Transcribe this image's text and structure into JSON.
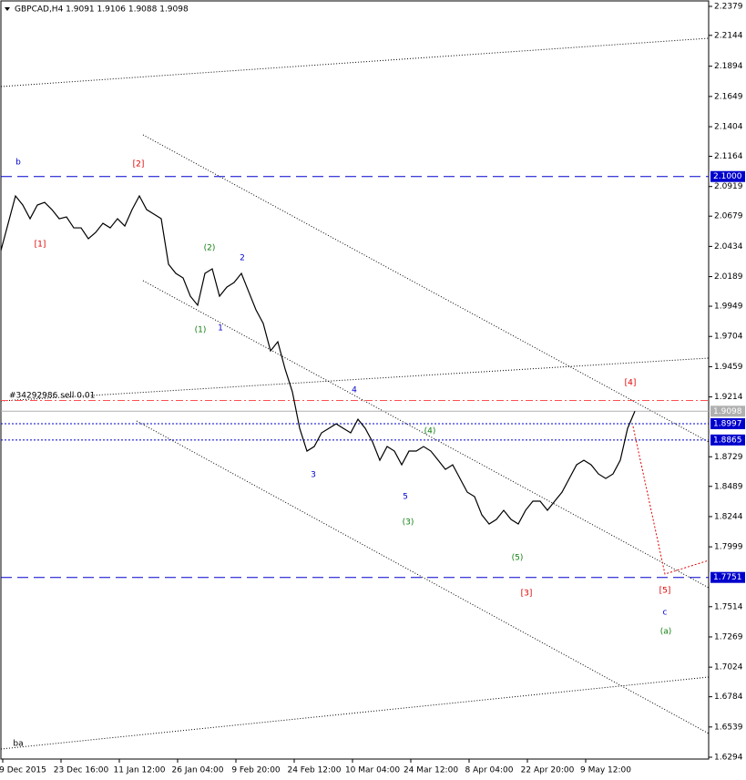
{
  "chart_data": {
    "type": "line",
    "title": "GBPCAD,H4  1.9091 1.9106 1.9088 1.9098",
    "color": "#000000",
    "categories": [
      null,
      null,
      null,
      "9 Dec 2015",
      null,
      null,
      null,
      null,
      null,
      null,
      null,
      "23 Dec 16:00",
      null,
      null,
      null,
      null,
      null,
      null,
      null,
      "11 Jan 12:00",
      null,
      null,
      null,
      null,
      null,
      null,
      null,
      "26 Jan 04:00",
      null,
      null,
      null,
      null,
      null,
      null,
      null,
      "9 Feb 20:00",
      null,
      null,
      null,
      null,
      null,
      null,
      null,
      "24 Feb 12:00",
      null,
      null,
      null,
      null,
      null,
      null,
      null,
      "10 Mar 04:00",
      null,
      null,
      null,
      null,
      null,
      null,
      null,
      "24 Mar 12:00",
      null,
      null,
      null,
      null,
      null,
      null,
      null,
      "8 Apr 04:00",
      null,
      null,
      null,
      null,
      null,
      null,
      null,
      "22 Apr 20:00",
      null,
      null,
      null,
      null,
      null,
      null,
      null,
      "9 May 12:00",
      null,
      null,
      null,
      null
    ],
    "values": [
      2.04,
      2.0621,
      2.0843,
      2.0769,
      2.0658,
      2.0769,
      2.0791,
      2.0732,
      2.0658,
      2.0673,
      2.0584,
      2.0584,
      2.0496,
      2.0547,
      2.0621,
      2.0584,
      2.0658,
      2.0599,
      2.0732,
      2.0843,
      2.0732,
      2.0695,
      2.0658,
      2.0289,
      2.0215,
      2.0178,
      2.003,
      1.9957,
      2.0215,
      2.0252,
      2.003,
      2.0104,
      2.0141,
      2.0215,
      2.0067,
      1.992,
      1.9809,
      1.9587,
      1.9661,
      1.944,
      1.9255,
      1.8959,
      1.8775,
      1.8812,
      1.8923,
      1.8959,
      1.8996,
      1.8959,
      1.8923,
      1.9033,
      1.8959,
      1.8849,
      1.8701,
      1.8812,
      1.8775,
      1.8664,
      1.8775,
      1.8775,
      1.8812,
      1.8775,
      1.8701,
      1.8627,
      1.8664,
      1.8553,
      1.8442,
      1.8406,
      1.8258,
      1.8184,
      1.8221,
      1.8295,
      1.8221,
      1.8184,
      1.8295,
      1.8369,
      1.8369,
      1.8295,
      1.8369,
      1.8442,
      1.8553,
      1.8664,
      1.8701,
      1.8664,
      1.859,
      1.8553,
      1.859,
      1.8701,
      1.8959,
      1.9098
    ],
    "ylim": [
      1.6294,
      2.2379
    ],
    "yticks": [
      2.2379,
      2.2144,
      2.1894,
      2.1649,
      2.1404,
      2.1164,
      2.0919,
      2.0679,
      2.0434,
      2.0189,
      1.9949,
      1.9704,
      1.9459,
      1.9214,
      1.8729,
      1.8489,
      1.8244,
      1.7999,
      1.7514,
      1.7269,
      1.7024,
      1.6784,
      1.6539,
      1.6294
    ],
    "levels": [
      {
        "value": 2.1,
        "label": "2.1000",
        "color": "#0000cd",
        "style": "dashed"
      },
      {
        "value": 1.9185,
        "color": "#ff5050",
        "style": "dashdot"
      },
      {
        "value": 1.9098,
        "label": "1.9098",
        "color": "#b0b0b0",
        "style": "solid"
      },
      {
        "value": 1.8997,
        "label": "1.8997",
        "color": "#0000cd",
        "style": "dotted"
      },
      {
        "value": 1.8865,
        "label": "1.8865",
        "color": "#0000cd",
        "style": "dotted"
      },
      {
        "value": 1.7751,
        "label": "1.7751",
        "color": "#0000cd",
        "style": "dashed"
      }
    ],
    "order_label": "#34292986 sell 0.01",
    "annotations": [
      {
        "text": "b",
        "color": "#0000cd"
      },
      {
        "text": "[2]",
        "color": "#e00000"
      },
      {
        "text": "[1]",
        "color": "#e00000"
      },
      {
        "text": "(2)",
        "color": "#108010"
      },
      {
        "text": "2",
        "color": "#0000cd"
      },
      {
        "text": "(1)",
        "color": "#108010"
      },
      {
        "text": "1",
        "color": "#0000cd"
      },
      {
        "text": "4",
        "color": "#0000cd"
      },
      {
        "text": "[4]",
        "color": "#e00000"
      },
      {
        "text": "(4)",
        "color": "#108010"
      },
      {
        "text": "3",
        "color": "#0000cd"
      },
      {
        "text": "5",
        "color": "#0000cd"
      },
      {
        "text": "(3)",
        "color": "#108010"
      },
      {
        "text": "(5)",
        "color": "#108010"
      },
      {
        "text": "[3]",
        "color": "#e00000"
      },
      {
        "text": "[5]",
        "color": "#e00000"
      },
      {
        "text": "c",
        "color": "#0000cd"
      },
      {
        "text": "(a)",
        "color": "#108010"
      },
      {
        "text": "ba",
        "color": "#000000"
      }
    ]
  }
}
